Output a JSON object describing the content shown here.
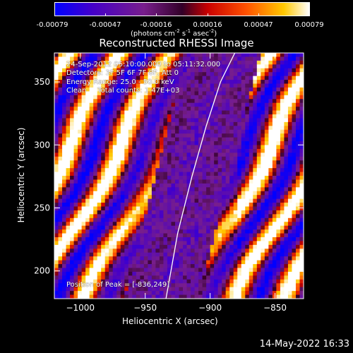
{
  "colorbar": {
    "ticks": [
      "-0.00079",
      "-0.00047",
      "-0.00016",
      "0.00016",
      "0.00047",
      "0.00079"
    ],
    "units_main": "(photons cm",
    "units_sup1": "-2",
    "units_mid1": " s",
    "units_sup2": "-1",
    "units_mid2": " asec",
    "units_sup3": "-2",
    "units_end": ")"
  },
  "info": {
    "time": "24-Sep-2012 05:10:00.000 to 05:11:32.000",
    "detectors": "Detectors: 3F 5F 6F 7F 8F, Att 0",
    "energy": "Energy Range: 25.0 - 50.0 keV",
    "clean": "Clean     Total counts: 1.47E+03",
    "peak": "Position of Peak = [-836,249]"
  },
  "footer": {
    "date": "14-May-2022 16:33"
  },
  "chart_data": {
    "type": "heatmap",
    "title": "Reconstructed RHESSI Image",
    "xlabel": "Heliocentric X (arcsec)",
    "ylabel": "Heliocentric Y (arcsec)",
    "xlim": [
      -1020,
      -828
    ],
    "ylim": [
      178,
      373
    ],
    "x_ticks": [
      -1000,
      -950,
      -900,
      -850
    ],
    "y_ticks": [
      200,
      250,
      300,
      350
    ],
    "colorbar_range": [
      -0.00079,
      0.00079
    ],
    "colormap": "blue-purple-red-orange-yellow-white",
    "peak_position": [
      -836,
      249
    ],
    "limb_curve": {
      "x": [
        -934,
        -925,
        -914,
        -903,
        -892,
        -881
      ],
      "y": [
        178,
        230,
        275,
        315,
        350,
        373
      ]
    }
  }
}
